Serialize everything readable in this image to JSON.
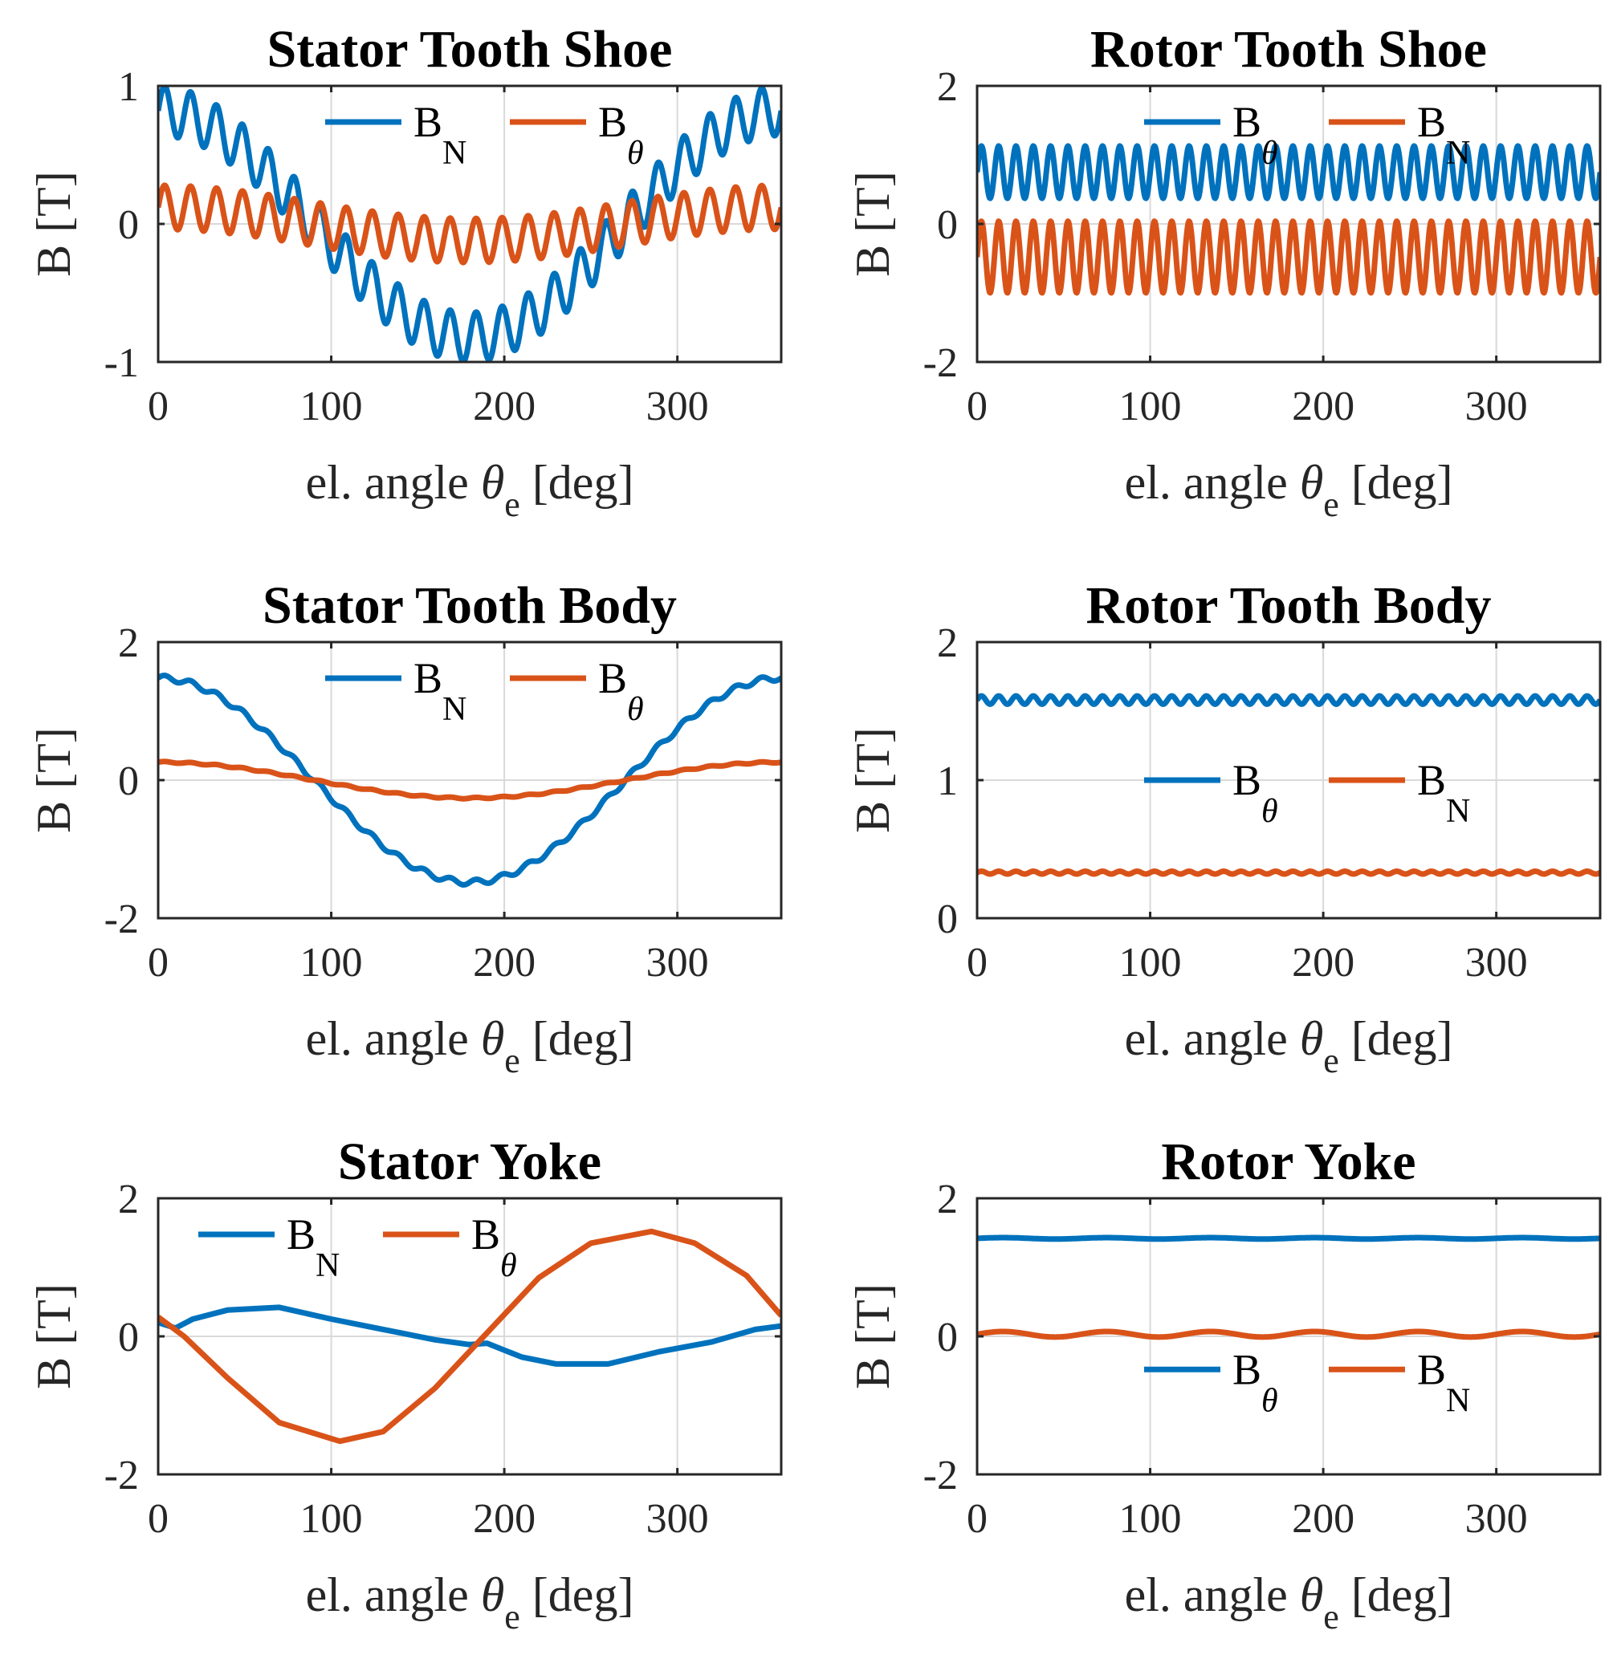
{
  "colors": {
    "blue": "#0072BD",
    "orange": "#D95319"
  },
  "chart_data": [
    {
      "id": "stator-tooth-shoe",
      "type": "line",
      "title": "Stator Tooth Shoe",
      "ylabel": "B [T]",
      "xlabel_parts": [
        "el. angle ",
        "θ",
        "e",
        " [deg]"
      ],
      "xlim": [
        0,
        360
      ],
      "ylim": [
        -1,
        1
      ],
      "xticks": [
        0,
        100,
        200,
        300
      ],
      "yticks": [
        -1,
        0,
        1
      ],
      "legend": {
        "position": "top",
        "entries": [
          {
            "base": "B",
            "sub": "N",
            "color": "#0072BD"
          },
          {
            "base": "B",
            "sub": "θ",
            "color": "#D95319"
          }
        ]
      },
      "series": [
        {
          "name": "BN",
          "color": "#0072BD",
          "shape": "cos",
          "amplitude": 0.82,
          "phase": 0,
          "offset": 0,
          "ripple": 0.18,
          "ripple_cycles": 24
        },
        {
          "name": "Bθ",
          "color": "#D95319",
          "shape": "cos",
          "amplitude": 0.12,
          "phase": 0,
          "offset": 0.0,
          "ripple": 0.16,
          "ripple_cycles": 24
        }
      ]
    },
    {
      "id": "rotor-tooth-shoe",
      "type": "line",
      "title": "Rotor Tooth Shoe",
      "ylabel": "B [T]",
      "xlabel_parts": [
        "el. angle ",
        "θ",
        "e",
        " [deg]"
      ],
      "xlim": [
        0,
        360
      ],
      "ylim": [
        -2,
        2
      ],
      "xticks": [
        0,
        100,
        200,
        300
      ],
      "yticks": [
        -2,
        0,
        2
      ],
      "legend": {
        "position": "top",
        "entries": [
          {
            "base": "B",
            "sub": "θ",
            "color": "#0072BD"
          },
          {
            "base": "B",
            "sub": "N",
            "color": "#D95319"
          }
        ]
      },
      "series": [
        {
          "name": "Bθ",
          "color": "#0072BD",
          "shape": "const",
          "amplitude": 0,
          "phase": 0,
          "offset": 0.75,
          "ripple": 0.38,
          "ripple_cycles": 36
        },
        {
          "name": "BN",
          "color": "#D95319",
          "shape": "const",
          "amplitude": 0,
          "phase": 0,
          "offset": -0.48,
          "ripple": 0.52,
          "ripple_cycles": 36
        }
      ]
    },
    {
      "id": "stator-tooth-body",
      "type": "line",
      "title": "Stator Tooth Body",
      "ylabel": "B [T]",
      "xlabel_parts": [
        "el. angle ",
        "θ",
        "e",
        " [deg]"
      ],
      "xlim": [
        0,
        360
      ],
      "ylim": [
        -2,
        2
      ],
      "xticks": [
        0,
        100,
        200,
        300
      ],
      "yticks": [
        -2,
        0,
        2
      ],
      "legend": {
        "position": "top",
        "entries": [
          {
            "base": "B",
            "sub": "N",
            "color": "#0072BD"
          },
          {
            "base": "B",
            "sub": "θ",
            "color": "#D95319"
          }
        ]
      },
      "series": [
        {
          "name": "BN",
          "color": "#0072BD",
          "shape": "cos",
          "amplitude": 1.48,
          "phase": 0,
          "offset": 0,
          "ripple": 0.04,
          "ripple_cycles": 24
        },
        {
          "name": "Bθ",
          "color": "#D95319",
          "shape": "cos",
          "amplitude": 0.26,
          "phase": 0,
          "offset": 0,
          "ripple": 0.01,
          "ripple_cycles": 24
        }
      ]
    },
    {
      "id": "rotor-tooth-body",
      "type": "line",
      "title": "Rotor Tooth Body",
      "ylabel": "B [T]",
      "xlabel_parts": [
        "el. angle ",
        "θ",
        "e",
        " [deg]"
      ],
      "xlim": [
        0,
        360
      ],
      "ylim": [
        0,
        2
      ],
      "xticks": [
        0,
        100,
        200,
        300
      ],
      "yticks": [
        0,
        1,
        2
      ],
      "legend": {
        "position": "middle",
        "entries": [
          {
            "base": "B",
            "sub": "θ",
            "color": "#0072BD"
          },
          {
            "base": "B",
            "sub": "N",
            "color": "#D95319"
          }
        ]
      },
      "series": [
        {
          "name": "Bθ",
          "color": "#0072BD",
          "shape": "const",
          "amplitude": 0,
          "phase": 0,
          "offset": 1.58,
          "ripple": 0.03,
          "ripple_cycles": 36
        },
        {
          "name": "BN",
          "color": "#D95319",
          "shape": "const",
          "amplitude": 0,
          "phase": 0,
          "offset": 0.33,
          "ripple": 0.01,
          "ripple_cycles": 36
        }
      ]
    },
    {
      "id": "stator-yoke",
      "type": "line",
      "title": "Stator Yoke",
      "ylabel": "B [T]",
      "xlabel_parts": [
        "el. angle ",
        "θ",
        "e",
        " [deg]"
      ],
      "xlim": [
        0,
        360
      ],
      "ylim": [
        -2,
        2
      ],
      "xticks": [
        0,
        100,
        200,
        300
      ],
      "yticks": [
        -2,
        0,
        2
      ],
      "legend": {
        "position": "top",
        "entries": [
          {
            "base": "B",
            "sub": "N",
            "color": "#0072BD"
          },
          {
            "base": "B",
            "sub": "θ",
            "color": "#D95319"
          }
        ]
      },
      "series": [
        {
          "name": "BN",
          "color": "#0072BD",
          "shape": "points",
          "x": [
            0,
            10,
            20,
            40,
            70,
            100,
            130,
            160,
            180,
            190,
            210,
            230,
            260,
            290,
            320,
            345,
            360
          ],
          "y": [
            0.2,
            0.12,
            0.25,
            0.38,
            0.42,
            0.25,
            0.1,
            -0.05,
            -0.12,
            -0.1,
            -0.3,
            -0.4,
            -0.4,
            -0.22,
            -0.08,
            0.1,
            0.15
          ]
        },
        {
          "name": "Bθ",
          "color": "#D95319",
          "shape": "points",
          "x": [
            0,
            15,
            40,
            70,
            105,
            130,
            160,
            190,
            220,
            250,
            285,
            310,
            340,
            360
          ],
          "y": [
            0.28,
            0.0,
            -0.6,
            -1.25,
            -1.52,
            -1.38,
            -0.75,
            0.05,
            0.85,
            1.35,
            1.52,
            1.35,
            0.88,
            0.3
          ]
        }
      ]
    },
    {
      "id": "rotor-yoke",
      "type": "line",
      "title": "Rotor Yoke",
      "ylabel": "B [T]",
      "xlabel_parts": [
        "el. angle ",
        "θ",
        "e",
        " [deg]"
      ],
      "xlim": [
        0,
        360
      ],
      "ylim": [
        -2,
        2
      ],
      "xticks": [
        0,
        100,
        200,
        300
      ],
      "yticks": [
        -2,
        0,
        2
      ],
      "legend": {
        "position": "lower",
        "entries": [
          {
            "base": "B",
            "sub": "θ",
            "color": "#0072BD"
          },
          {
            "base": "B",
            "sub": "N",
            "color": "#D95319"
          }
        ]
      },
      "series": [
        {
          "name": "Bθ",
          "color": "#0072BD",
          "shape": "const",
          "amplitude": 0,
          "phase": 0,
          "offset": 1.42,
          "ripple": 0.01,
          "ripple_cycles": 6
        },
        {
          "name": "BN",
          "color": "#D95319",
          "shape": "const",
          "amplitude": 0,
          "phase": 0,
          "offset": 0.03,
          "ripple": 0.04,
          "ripple_cycles": 6
        }
      ]
    }
  ]
}
